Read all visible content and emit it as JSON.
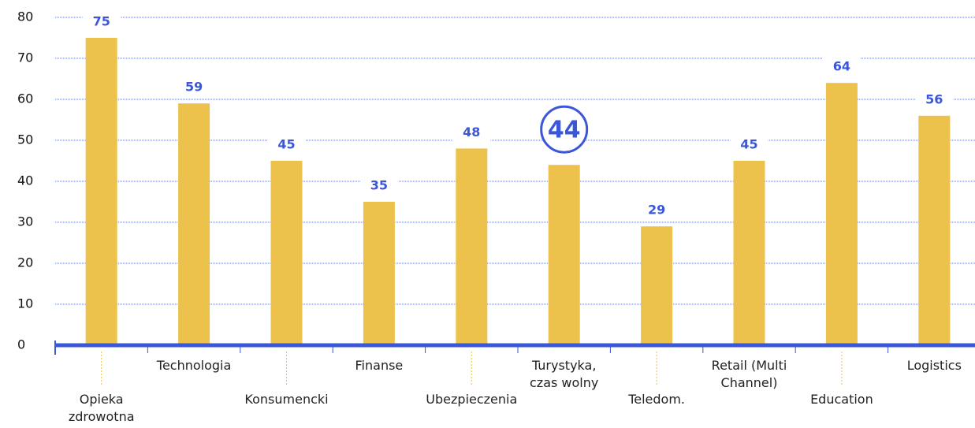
{
  "chart_data": {
    "type": "bar",
    "categories": [
      "Opieka\nzdrowotna",
      "Technologia",
      "Konsumencki",
      "Finanse",
      "Ubezpieczenia",
      "Turystyka,\nczas wolny",
      "Teledom.",
      "Retail (Multi\nChannel)",
      "Education",
      "Logistics"
    ],
    "values": [
      75,
      59,
      45,
      35,
      48,
      44,
      29,
      45,
      64,
      56
    ],
    "color": "#ecc24c",
    "label_color": "#3a56d9",
    "highlight_index": 5,
    "ylim": [
      0,
      80
    ],
    "yticks": [
      0,
      10,
      20,
      30,
      40,
      50,
      60,
      70,
      80
    ],
    "grid": true
  }
}
